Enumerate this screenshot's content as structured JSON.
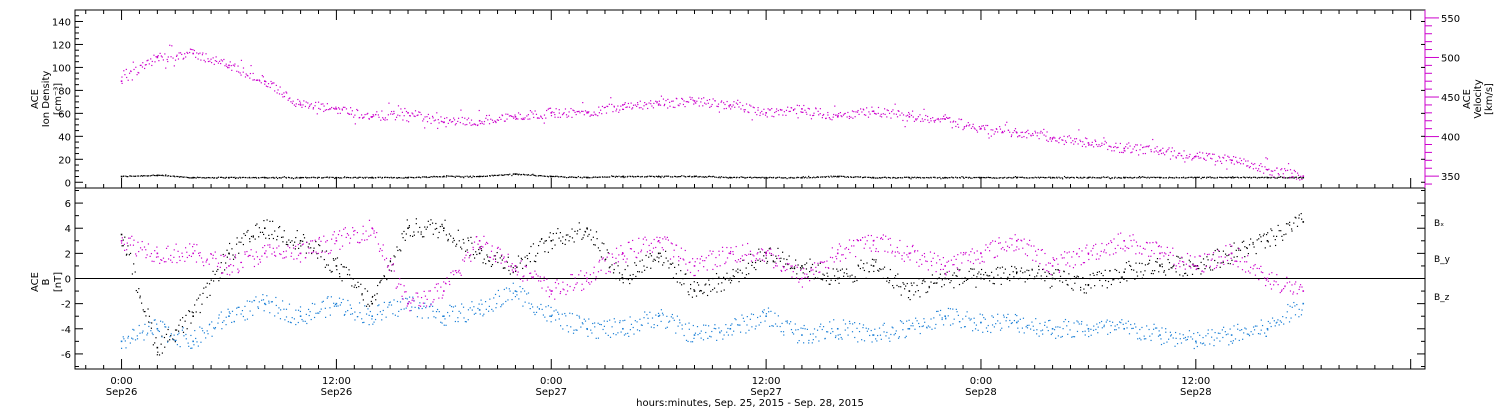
{
  "chart_data": [
    {
      "type": "scatter",
      "panel": "top",
      "ylabel_left": [
        "ACE",
        "Ion Density",
        "[cm⁻³]"
      ],
      "ylabel_right": [
        "ACE",
        "Velocity",
        "[km/s]"
      ],
      "ylim_left": [
        -5,
        150
      ],
      "yticks_left": [
        0,
        20,
        40,
        60,
        80,
        100,
        120,
        140
      ],
      "ylim_right": [
        335,
        560
      ],
      "yticks_right": [
        350,
        400,
        450,
        500,
        550
      ],
      "grid": false,
      "series": [
        {
          "axis": "left",
          "color": "#000000",
          "x": [
            0,
            2,
            4,
            6,
            8,
            10,
            12,
            14,
            16,
            18,
            20,
            22,
            24,
            26,
            28,
            30,
            32,
            34,
            36,
            38,
            40,
            42,
            44,
            46,
            48,
            50,
            52,
            54,
            56,
            58,
            60,
            62,
            64,
            66
          ],
          "values": [
            5,
            6,
            4,
            4,
            4,
            4,
            4,
            4,
            4,
            5,
            5,
            7,
            5,
            4,
            5,
            5,
            5,
            4,
            4,
            4,
            5,
            4,
            4,
            4,
            4,
            4,
            4,
            4,
            4,
            4,
            4,
            4,
            4,
            4
          ]
        },
        {
          "axis": "right",
          "color": "#cc00cc",
          "x": [
            0,
            2,
            4,
            6,
            8,
            10,
            12,
            14,
            16,
            18,
            20,
            22,
            24,
            26,
            28,
            30,
            32,
            34,
            36,
            38,
            40,
            42,
            44,
            46,
            48,
            50,
            52,
            54,
            56,
            58,
            60,
            62,
            64,
            66
          ],
          "values": [
            470,
            500,
            505,
            490,
            470,
            440,
            435,
            425,
            430,
            418,
            420,
            425,
            430,
            430,
            440,
            440,
            445,
            440,
            430,
            435,
            425,
            432,
            425,
            422,
            410,
            405,
            398,
            392,
            385,
            382,
            375,
            370,
            358,
            350
          ]
        }
      ]
    },
    {
      "type": "scatter",
      "panel": "bottom",
      "ylabel": [
        "ACE",
        "B",
        "[nT]"
      ],
      "ylim": [
        -7.2,
        7.2
      ],
      "yticks": [
        -6,
        -4,
        -2,
        0,
        2,
        4,
        6
      ],
      "zero_line": true,
      "grid": false,
      "series": [
        {
          "name": "Bₓ",
          "color": "#000000",
          "x": [
            0,
            2,
            4,
            6,
            8,
            10,
            12,
            14,
            16,
            18,
            20,
            22,
            24,
            26,
            28,
            30,
            32,
            34,
            36,
            38,
            40,
            42,
            44,
            46,
            48,
            50,
            52,
            54,
            56,
            58,
            60,
            62,
            64,
            66
          ],
          "values": [
            3.5,
            -5.5,
            -3,
            2,
            4,
            3,
            1,
            -2,
            4,
            4,
            2,
            1,
            3,
            4,
            0,
            2,
            -1,
            0,
            2,
            1,
            0,
            1,
            -1,
            0,
            0,
            0.5,
            0,
            -0.5,
            0.5,
            1,
            1,
            2,
            3,
            4.5
          ]
        },
        {
          "name": "B_y",
          "color": "#1a7fd6",
          "x": [
            0,
            2,
            4,
            6,
            8,
            10,
            12,
            14,
            16,
            18,
            20,
            22,
            24,
            26,
            28,
            30,
            32,
            34,
            36,
            38,
            40,
            42,
            44,
            46,
            48,
            50,
            52,
            54,
            56,
            58,
            60,
            62,
            64,
            66
          ],
          "values": [
            -5,
            -4,
            -5,
            -3,
            -2,
            -3,
            -2,
            -3,
            -2,
            -3,
            -2.5,
            -1,
            -3,
            -4,
            -4,
            -3,
            -4.5,
            -4,
            -3,
            -4.5,
            -4,
            -4.5,
            -4,
            -3,
            -3.5,
            -3.5,
            -4,
            -4,
            -4,
            -4.5,
            -5,
            -4.5,
            -4,
            -2
          ]
        },
        {
          "name": "B_z",
          "color": "#cc00cc",
          "x": [
            0,
            2,
            4,
            6,
            8,
            10,
            12,
            14,
            16,
            18,
            20,
            22,
            24,
            26,
            28,
            30,
            32,
            34,
            36,
            38,
            40,
            42,
            44,
            46,
            48,
            50,
            52,
            54,
            56,
            58,
            60,
            62,
            64,
            66
          ],
          "values": [
            3,
            2,
            2,
            1,
            2,
            2,
            3,
            4,
            -2,
            -1,
            3,
            1,
            -1,
            0,
            2,
            3,
            1,
            2,
            2,
            0,
            2,
            3,
            2,
            1,
            2,
            3,
            1,
            2,
            3,
            2,
            1,
            2,
            0,
            -1
          ]
        }
      ]
    }
  ],
  "xaxis": {
    "title": "hours:minutes, Sep. 25, 2015 - Sep. 28, 2015",
    "ticks": [
      {
        "x": 0,
        "time": "0:00",
        "date": "Sep26"
      },
      {
        "x": 12,
        "time": "12:00",
        "date": "Sep26"
      },
      {
        "x": 24,
        "time": "0:00",
        "date": "Sep27"
      },
      {
        "x": 36,
        "time": "12:00",
        "date": "Sep27"
      },
      {
        "x": 48,
        "time": "0:00",
        "date": "Sep28"
      },
      {
        "x": 60,
        "time": "12:00",
        "date": "Sep28"
      }
    ],
    "xlim": [
      -2.6,
      72.8
    ]
  }
}
